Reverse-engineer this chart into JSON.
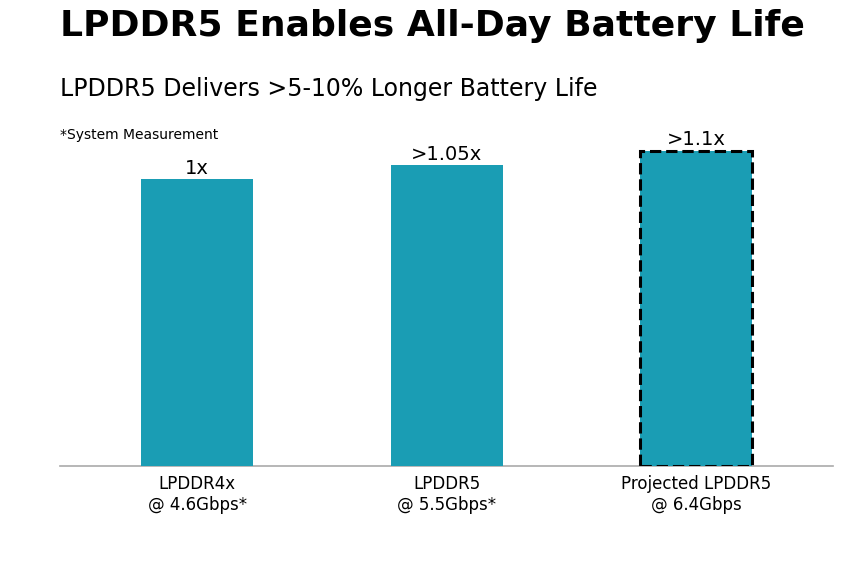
{
  "title": "LPDDR5 Enables All-Day Battery Life",
  "subtitle": "LPDDR5 Delivers >5-10% Longer Battery Life",
  "note": "*System Measurement",
  "categories": [
    "LPDDR4x\n@ 4.6Gbps*",
    "LPDDR5\n@ 5.5Gbps*",
    "Projected LPDDR5\n@ 6.4Gbps"
  ],
  "values": [
    1.0,
    1.05,
    1.1
  ],
  "labels": [
    "1x",
    ">1.05x",
    ">1.1x"
  ],
  "bar_color": "#1a9db4",
  "bar_width": 0.45,
  "background_color": "#ffffff",
  "title_fontsize": 26,
  "subtitle_fontsize": 17,
  "note_fontsize": 10,
  "label_fontsize": 14,
  "tick_fontsize": 12,
  "ylim_min": 0.0,
  "ylim_max": 1.15,
  "last_bar_dashed": true
}
